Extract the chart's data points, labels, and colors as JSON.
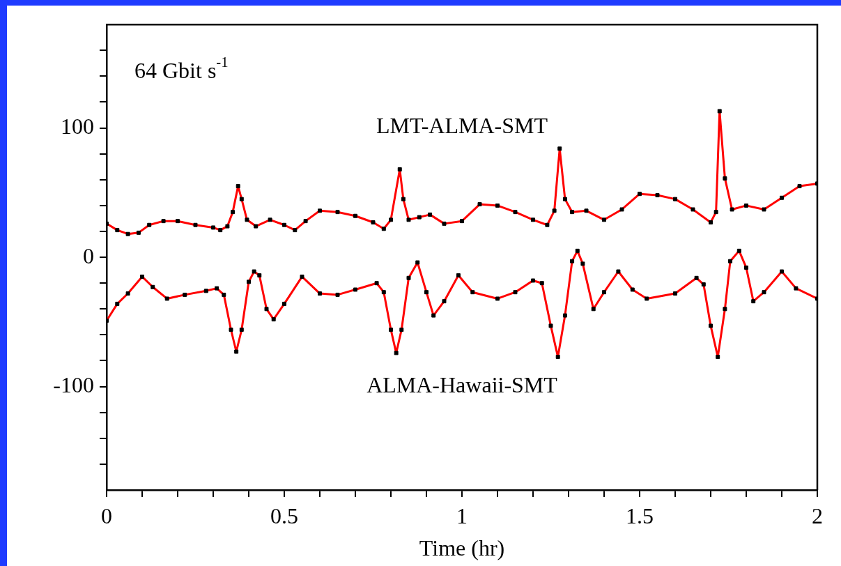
{
  "chart_data": {
    "type": "line",
    "xlabel": "Time (hr)",
    "xlim": [
      0,
      2
    ],
    "ylim": [
      -180,
      180
    ],
    "xticks": [
      0,
      {
        "value": 0.1,
        "label": null
      },
      {
        "value": 0.2,
        "label": null
      },
      {
        "value": 0.3,
        "label": null
      },
      {
        "value": 0.4,
        "label": null
      },
      0.5,
      {
        "value": 0.6,
        "label": null
      },
      {
        "value": 0.7,
        "label": null
      },
      {
        "value": 0.8,
        "label": null
      },
      {
        "value": 0.9,
        "label": null
      },
      1,
      {
        "value": 1.1,
        "label": null
      },
      {
        "value": 1.2,
        "label": null
      },
      {
        "value": 1.3,
        "label": null
      },
      {
        "value": 1.4,
        "label": null
      },
      1.5,
      {
        "value": 1.6,
        "label": null
      },
      {
        "value": 1.7,
        "label": null
      },
      {
        "value": 1.8,
        "label": null
      },
      {
        "value": 1.9,
        "label": null
      },
      2
    ],
    "yticks": [
      {
        "value": -160,
        "label": null
      },
      {
        "value": -140,
        "label": null
      },
      {
        "value": -120,
        "label": null
      },
      -100,
      {
        "value": -80,
        "label": null
      },
      {
        "value": -60,
        "label": null
      },
      {
        "value": -40,
        "label": null
      },
      {
        "value": -20,
        "label": null
      },
      0,
      {
        "value": 20,
        "label": null
      },
      {
        "value": 40,
        "label": null
      },
      {
        "value": 60,
        "label": null
      },
      {
        "value": 80,
        "label": null
      },
      100,
      {
        "value": 120,
        "label": null
      },
      {
        "value": 140,
        "label": null
      },
      {
        "value": 160,
        "label": null
      }
    ],
    "grid": false,
    "legend": false,
    "annotations": [
      "64 Gbit s$^{-1}$"
    ],
    "series": [
      {
        "color": "#ff0000",
        "marker": "none",
        "line_style": "solid",
        "x": [
          0,
          0.03,
          0.06,
          0.09,
          0.12,
          0.16,
          0.2,
          0.25,
          0.3,
          0.32,
          0.34,
          0.355,
          0.37,
          0.38,
          0.395,
          0.42,
          0.46,
          0.5,
          0.53,
          0.56,
          0.6,
          0.65,
          0.7,
          0.75,
          0.78,
          0.8,
          0.825,
          0.835,
          0.85,
          0.88,
          0.91,
          0.95,
          1,
          1.05,
          1.1,
          1.15,
          1.2,
          1.24,
          1.26,
          1.275,
          1.29,
          1.31,
          1.35,
          1.4,
          1.45,
          1.5,
          1.55,
          1.6,
          1.65,
          1.7,
          1.715,
          1.725,
          1.74,
          1.76,
          1.8,
          1.85,
          1.9,
          1.95,
          2
        ],
        "values": [
          26,
          21,
          18,
          19,
          25,
          28,
          28,
          25,
          23,
          21,
          24,
          35,
          55,
          45,
          29,
          24,
          29,
          25,
          21,
          28,
          36,
          35,
          32,
          27,
          22,
          29,
          68,
          45,
          29,
          31,
          33,
          26,
          28,
          41,
          40,
          35,
          29,
          25,
          36,
          84,
          45,
          35,
          36,
          29,
          37,
          49,
          48,
          45,
          37,
          27,
          35,
          113,
          61,
          37,
          40,
          37,
          46,
          55,
          57
        ]
      },
      {
        "type": "scatter",
        "name": "LMT-ALMA-SMT",
        "color": "#000000",
        "marker": "square",
        "x": [
          0,
          0.03,
          0.06,
          0.09,
          0.12,
          0.16,
          0.2,
          0.25,
          0.3,
          0.32,
          0.34,
          0.355,
          0.37,
          0.38,
          0.395,
          0.42,
          0.46,
          0.5,
          0.53,
          0.56,
          0.6,
          0.65,
          0.7,
          0.75,
          0.78,
          0.8,
          0.825,
          0.835,
          0.85,
          0.88,
          0.91,
          0.95,
          1,
          1.05,
          1.1,
          1.15,
          1.2,
          1.24,
          1.26,
          1.275,
          1.29,
          1.31,
          1.35,
          1.4,
          1.45,
          1.5,
          1.55,
          1.6,
          1.65,
          1.7,
          1.715,
          1.725,
          1.74,
          1.76,
          1.8,
          1.85,
          1.9,
          1.95,
          2
        ],
        "values": [
          26,
          21,
          18,
          19,
          25,
          28,
          28,
          25,
          23,
          21,
          24,
          35,
          55,
          45,
          29,
          24,
          29,
          25,
          21,
          28,
          36,
          35,
          32,
          27,
          22,
          29,
          68,
          45,
          29,
          31,
          33,
          26,
          28,
          41,
          40,
          35,
          29,
          25,
          36,
          84,
          45,
          35,
          36,
          29,
          37,
          49,
          48,
          45,
          37,
          27,
          35,
          113,
          61,
          37,
          40,
          37,
          46,
          55,
          57
        ]
      },
      {
        "color": "#ff0000",
        "marker": "none",
        "line_style": "solid",
        "x": [
          0,
          0.03,
          0.06,
          0.1,
          0.13,
          0.17,
          0.22,
          0.28,
          0.31,
          0.33,
          0.35,
          0.365,
          0.38,
          0.4,
          0.415,
          0.43,
          0.45,
          0.47,
          0.5,
          0.55,
          0.6,
          0.65,
          0.7,
          0.76,
          0.78,
          0.8,
          0.815,
          0.83,
          0.85,
          0.875,
          0.9,
          0.92,
          0.95,
          0.99,
          1.03,
          1.1,
          1.15,
          1.2,
          1.225,
          1.25,
          1.27,
          1.29,
          1.31,
          1.325,
          1.34,
          1.37,
          1.4,
          1.44,
          1.48,
          1.52,
          1.6,
          1.66,
          1.68,
          1.7,
          1.72,
          1.74,
          1.755,
          1.78,
          1.8,
          1.82,
          1.85,
          1.9,
          1.94,
          2
        ],
        "values": [
          -49,
          -36,
          -28,
          -15,
          -23,
          -32,
          -29,
          -26,
          -24,
          -29,
          -56,
          -73,
          -56,
          -19,
          -11,
          -14,
          -40,
          -48,
          -36,
          -15,
          -28,
          -29,
          -25,
          -20,
          -27,
          -56,
          -74,
          -56,
          -16,
          -4,
          -27,
          -45,
          -34,
          -14,
          -27,
          -32,
          -27,
          -18,
          -20,
          -53,
          -77,
          -45,
          -3,
          5,
          -5,
          -40,
          -27,
          -11,
          -25,
          -32,
          -28,
          -16,
          -21,
          -53,
          -77,
          -40,
          -3,
          5,
          -8,
          -34,
          -27,
          -11,
          -24,
          -32
        ]
      },
      {
        "type": "scatter",
        "name": "ALMA-Hawaii-SMT",
        "color": "#000000",
        "marker": "square",
        "x": [
          0,
          0.03,
          0.06,
          0.1,
          0.13,
          0.17,
          0.22,
          0.28,
          0.31,
          0.33,
          0.35,
          0.365,
          0.38,
          0.4,
          0.415,
          0.43,
          0.45,
          0.47,
          0.5,
          0.55,
          0.6,
          0.65,
          0.7,
          0.76,
          0.78,
          0.8,
          0.815,
          0.83,
          0.85,
          0.875,
          0.9,
          0.92,
          0.95,
          0.99,
          1.03,
          1.1,
          1.15,
          1.2,
          1.225,
          1.25,
          1.27,
          1.29,
          1.31,
          1.325,
          1.34,
          1.37,
          1.4,
          1.44,
          1.48,
          1.52,
          1.6,
          1.66,
          1.68,
          1.7,
          1.72,
          1.74,
          1.755,
          1.78,
          1.8,
          1.82,
          1.85,
          1.9,
          1.94,
          2
        ],
        "values": [
          -49,
          -36,
          -28,
          -15,
          -23,
          -32,
          -29,
          -26,
          -24,
          -29,
          -56,
          -73,
          -56,
          -19,
          -11,
          -14,
          -40,
          -48,
          -36,
          -15,
          -28,
          -29,
          -25,
          -20,
          -27,
          -56,
          -74,
          -56,
          -16,
          -4,
          -27,
          -45,
          -34,
          -14,
          -27,
          -32,
          -27,
          -18,
          -20,
          -53,
          -77,
          -45,
          -3,
          5,
          -5,
          -40,
          -27,
          -11,
          -25,
          -32,
          -28,
          -16,
          -21,
          -53,
          -77,
          -40,
          -3,
          5,
          -8,
          -34,
          -27,
          -11,
          -24,
          -32
        ]
      }
    ]
  }
}
